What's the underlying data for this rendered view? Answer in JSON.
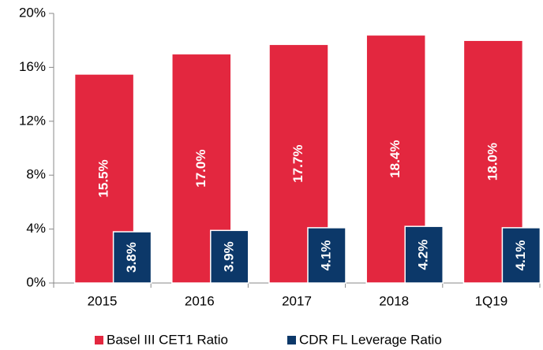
{
  "chart_data": {
    "type": "bar",
    "categories": [
      "2015",
      "2016",
      "2017",
      "2018",
      "1Q19"
    ],
    "series": [
      {
        "name": "Basel III CET1 Ratio",
        "color": "#e3273f",
        "values": [
          15.5,
          17.0,
          17.7,
          18.4,
          18.0
        ],
        "value_labels": [
          "15.5%",
          "17.0%",
          "17.7%",
          "18.4%",
          "18.0%"
        ]
      },
      {
        "name": "CDR FL Leverage Ratio",
        "color": "#0c3869",
        "values": [
          3.8,
          3.9,
          4.1,
          4.2,
          4.1
        ],
        "value_labels": [
          "3.8%",
          "3.9%",
          "4.1%",
          "4.2%",
          "4.1%"
        ]
      }
    ],
    "ylim": [
      0,
      20
    ],
    "yticks": [
      {
        "value": 0,
        "label": "0%"
      },
      {
        "value": 4,
        "label": "4%"
      },
      {
        "value": 8,
        "label": "8%"
      },
      {
        "value": 12,
        "label": "12%"
      },
      {
        "value": 16,
        "label": "16%"
      },
      {
        "value": 20,
        "label": "20%"
      }
    ],
    "legend": "bottom"
  }
}
